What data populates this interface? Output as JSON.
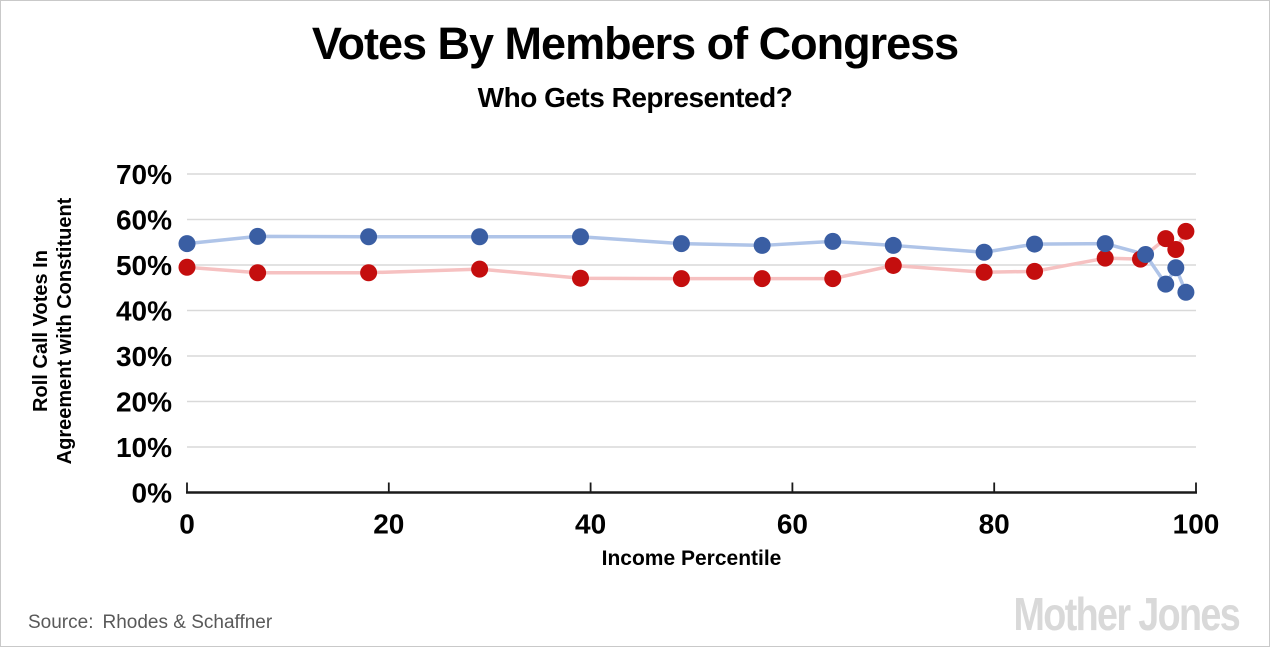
{
  "header": {
    "title": "Votes By Members of Congress",
    "subtitle": "Who Gets Represented?"
  },
  "footer": {
    "source_label": "Source:",
    "source_value": "Rhodes & Schaffner",
    "brand": "Mother Jones"
  },
  "chart_data": {
    "type": "line",
    "title": "Votes By Members of Congress",
    "subtitle": "Who Gets Represented?",
    "xlabel": "Income Percentile",
    "ylabel_lines": [
      "Roll Call Votes In",
      "Agreement with Constituent"
    ],
    "xlim": [
      0,
      100
    ],
    "ylim": [
      0,
      70
    ],
    "grid": true,
    "legend": false,
    "grid_color": "#d9d9d9",
    "axis_color": "#1a1a1a",
    "text_color": "#000000",
    "xticks": [
      0,
      20,
      40,
      60,
      80,
      100
    ],
    "yticks": [
      {
        "value": 0,
        "label": "0%"
      },
      {
        "value": 10,
        "label": "10%"
      },
      {
        "value": 20,
        "label": "20%"
      },
      {
        "value": 30,
        "label": "30%"
      },
      {
        "value": 40,
        "label": "40%"
      },
      {
        "value": 50,
        "label": "50%"
      },
      {
        "value": 60,
        "label": "60%"
      },
      {
        "value": 70,
        "label": "70%"
      }
    ],
    "series": [
      {
        "name": "blue-series",
        "dot_color": "#3a5ea3",
        "line_color": "#afc4e8",
        "x": [
          0,
          7,
          18,
          29,
          39,
          49,
          57,
          64,
          70,
          79,
          84,
          91,
          95,
          97,
          98,
          99
        ],
        "values": [
          54.7,
          56.3,
          56.2,
          56.2,
          56.2,
          54.7,
          54.3,
          55.2,
          54.3,
          52.8,
          54.6,
          54.7,
          52.3,
          45.8,
          49.4,
          44.0
        ]
      },
      {
        "name": "red-series",
        "dot_color": "#c40e0e",
        "line_color": "#f6c1c1",
        "x": [
          0,
          7,
          18,
          29,
          39,
          49,
          57,
          64,
          70,
          79,
          84,
          91,
          94.5,
          97,
          98,
          99
        ],
        "values": [
          49.5,
          48.3,
          48.3,
          49.1,
          47.1,
          47.0,
          47.0,
          47.0,
          49.9,
          48.4,
          48.6,
          51.5,
          51.3,
          55.8,
          53.4,
          57.4
        ]
      }
    ]
  }
}
